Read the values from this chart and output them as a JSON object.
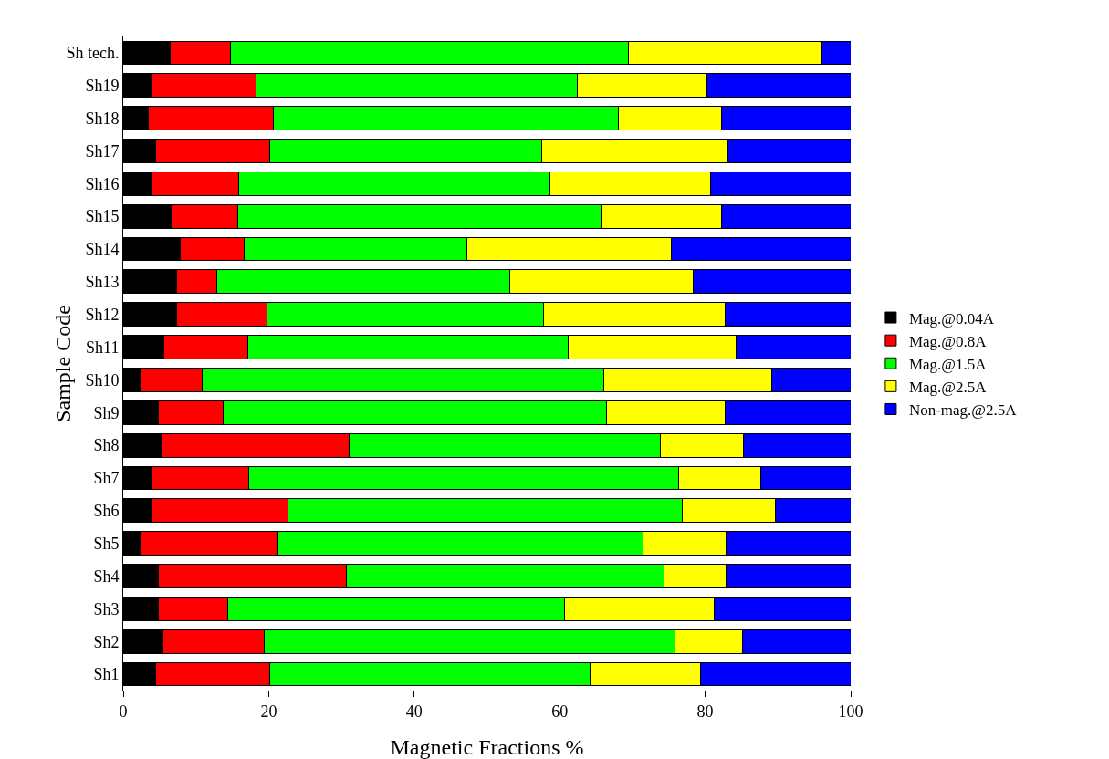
{
  "chart_data": {
    "type": "bar",
    "orientation": "horizontal",
    "stacked": true,
    "xlabel": "Magnetic Fractions %",
    "ylabel": "Sample Code",
    "categories": [
      "Sh tech.",
      "Sh19",
      "Sh18",
      "Sh17",
      "Sh16",
      "Sh15",
      "Sh14",
      "Sh13",
      "Sh12",
      "Sh11",
      "Sh10",
      "Sh9",
      "Sh8",
      "Sh7",
      "Sh6",
      "Sh5",
      "Sh4",
      "Sh3",
      "Sh2",
      "Sh1"
    ],
    "series": [
      {
        "name": "Mag.@0.04A",
        "color": "#000000",
        "values": [
          6.4,
          4.0,
          3.4,
          4.4,
          4.0,
          6.6,
          7.9,
          7.3,
          7.4,
          5.6,
          2.5,
          4.8,
          5.3,
          4.0,
          4.0,
          2.3,
          4.8,
          4.8,
          5.5,
          4.4
        ]
      },
      {
        "name": "Mag.@0.8A",
        "color": "#ff0000",
        "values": [
          8.4,
          14.3,
          17.3,
          15.7,
          11.9,
          9.2,
          8.7,
          5.5,
          12.4,
          11.5,
          8.4,
          9.0,
          25.8,
          13.3,
          18.6,
          19.0,
          25.9,
          9.6,
          13.9,
          15.8
        ]
      },
      {
        "name": "Mag.@1.5A",
        "color": "#00ff00",
        "values": [
          54.6,
          44.1,
          47.4,
          37.4,
          42.7,
          49.9,
          30.6,
          40.3,
          38.0,
          44.1,
          55.1,
          52.6,
          42.7,
          59.0,
          54.3,
          50.2,
          43.7,
          46.3,
          56.5,
          44.0
        ]
      },
      {
        "name": "Mag.@2.5A",
        "color": "#ffff00",
        "values": [
          26.7,
          17.8,
          14.2,
          25.6,
          22.2,
          16.6,
          28.1,
          25.2,
          24.9,
          23.1,
          23.2,
          16.3,
          11.4,
          11.4,
          12.7,
          11.4,
          8.5,
          20.5,
          9.2,
          15.1
        ]
      },
      {
        "name": "Non-mag.@2.5A",
        "color": "#0000ff",
        "values": [
          3.9,
          19.8,
          17.7,
          16.9,
          19.2,
          17.7,
          24.7,
          21.7,
          17.3,
          15.7,
          10.8,
          17.3,
          14.8,
          12.3,
          10.4,
          17.1,
          17.1,
          18.8,
          14.9,
          20.7
        ]
      }
    ],
    "xlim": [
      0,
      100
    ],
    "xticks": [
      0,
      20,
      40,
      60,
      80,
      100
    ],
    "grid": false,
    "legend": "right"
  }
}
